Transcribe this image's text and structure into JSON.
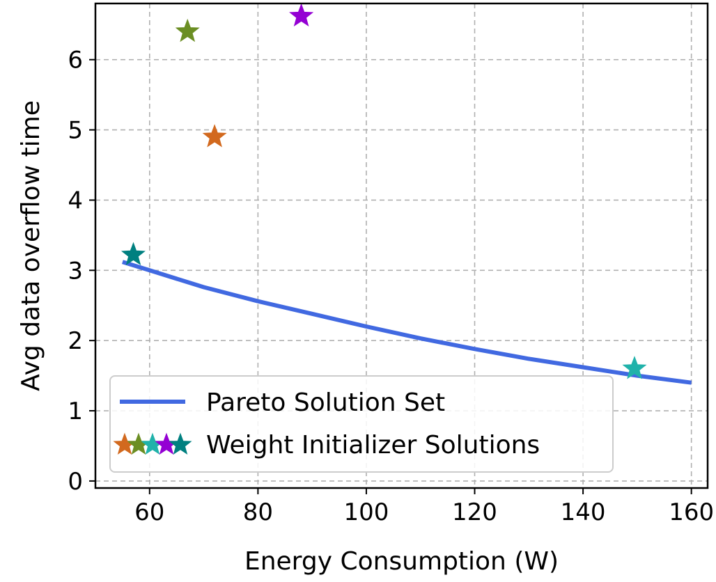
{
  "chart_data": {
    "type": "scatter",
    "title": "",
    "xlabel": "Energy Consumption (W)",
    "ylabel": "Avg data overflow time",
    "xlim": [
      50,
      163
    ],
    "ylim": [
      -0.1,
      6.8
    ],
    "xticks": [
      60,
      80,
      100,
      120,
      140,
      160
    ],
    "yticks": [
      0,
      1,
      2,
      3,
      4,
      5,
      6
    ],
    "grid": true,
    "legend_position": "lower-left",
    "series": [
      {
        "name": "Pareto Solution Set",
        "kind": "line",
        "color": "#4169e1",
        "x": [
          55,
          60,
          70,
          80,
          90,
          100,
          110,
          120,
          130,
          140,
          150,
          160
        ],
        "y": [
          3.12,
          3.0,
          2.76,
          2.56,
          2.38,
          2.2,
          2.03,
          1.88,
          1.74,
          1.62,
          1.5,
          1.4
        ]
      },
      {
        "name": "Weight Initializer Solutions",
        "kind": "scatter",
        "marker": "star",
        "points": [
          {
            "x": 72,
            "y": 4.9,
            "color": "#d2691e"
          },
          {
            "x": 67,
            "y": 6.4,
            "color": "#6b8e23"
          },
          {
            "x": 149.5,
            "y": 1.6,
            "color": "#20b2aa"
          },
          {
            "x": 88,
            "y": 6.62,
            "color": "#9400d3"
          },
          {
            "x": 57,
            "y": 3.22,
            "color": "#008080"
          }
        ]
      }
    ]
  }
}
